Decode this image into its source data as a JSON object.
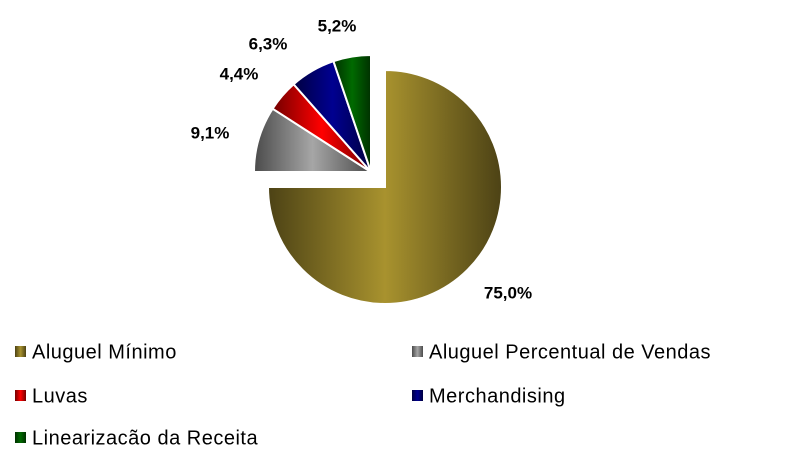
{
  "chart_data": {
    "type": "pie",
    "categories": [
      "Aluguel Mínimo",
      "Aluguel Percentual de Vendas",
      "Luvas",
      "Merchandising",
      "Linearizacão da Receita"
    ],
    "values": [
      75.0,
      9.1,
      4.4,
      6.3,
      5.2
    ],
    "value_labels": [
      "75,0%",
      "9,1%",
      "4,4%",
      "6,3%",
      "5,2%"
    ],
    "colors": [
      "#a8922e",
      "#a6a6a6",
      "#ff0000",
      "#000090",
      "#006a00"
    ],
    "legend": "bottom"
  }
}
